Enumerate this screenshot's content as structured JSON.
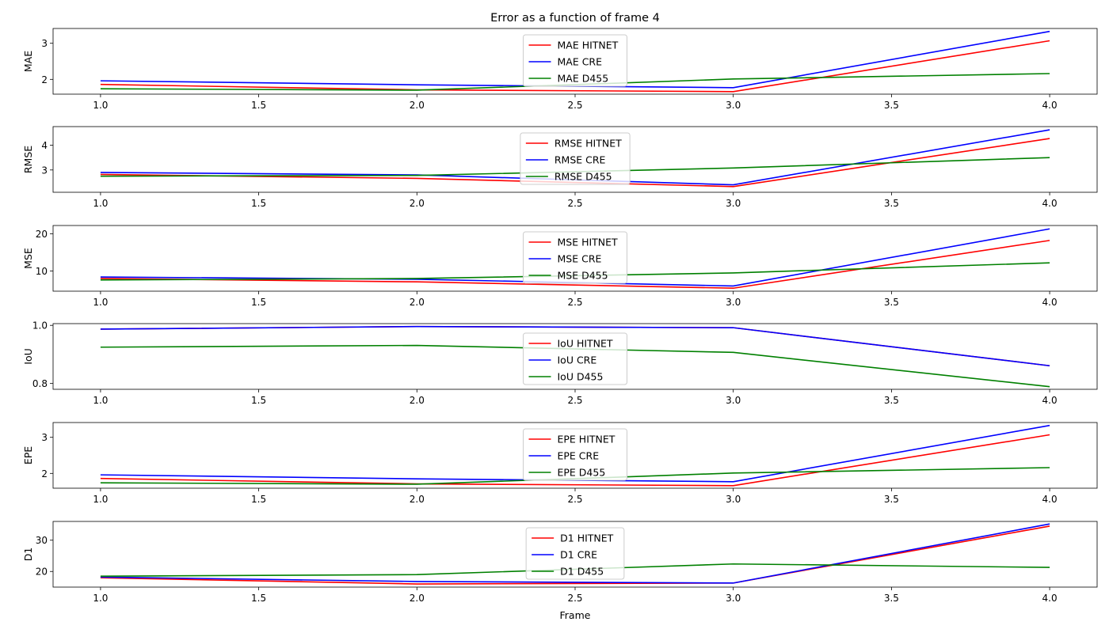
{
  "figure": {
    "title": "Error as a function of frame 4",
    "xlabel": "Frame"
  },
  "chart_data": [
    {
      "type": "line",
      "ylabel": "MAE",
      "x": [
        1.0,
        2.0,
        3.0,
        4.0
      ],
      "xlim": [
        0.85,
        4.15
      ],
      "xticks": [
        1.0,
        1.5,
        2.0,
        2.5,
        3.0,
        3.5,
        4.0
      ],
      "ylim": [
        1.59,
        3.41
      ],
      "yticks": [
        2,
        3
      ],
      "legend_position": "top-center",
      "series": [
        {
          "name": "MAE HITNET",
          "color": "#ff0000",
          "values": [
            1.86,
            1.71,
            1.66,
            3.07
          ]
        },
        {
          "name": "MAE CRE",
          "color": "#0000ff",
          "values": [
            1.96,
            1.85,
            1.77,
            3.33
          ]
        },
        {
          "name": "MAE D455",
          "color": "#008000",
          "values": [
            1.74,
            1.7,
            2.01,
            2.16
          ]
        }
      ]
    },
    {
      "type": "line",
      "ylabel": "RMSE",
      "x": [
        1.0,
        2.0,
        3.0,
        4.0
      ],
      "xlim": [
        0.85,
        4.15
      ],
      "xticks": [
        1.0,
        1.5,
        2.0,
        2.5,
        3.0,
        3.5,
        4.0
      ],
      "ylim": [
        2.1,
        4.75
      ],
      "yticks": [
        3,
        4
      ],
      "legend_position": "top-center",
      "series": [
        {
          "name": "RMSE HITNET",
          "color": "#ff0000",
          "values": [
            2.82,
            2.66,
            2.33,
            4.27
          ]
        },
        {
          "name": "RMSE CRE",
          "color": "#0000ff",
          "values": [
            2.9,
            2.8,
            2.4,
            4.62
          ]
        },
        {
          "name": "RMSE D455",
          "color": "#008000",
          "values": [
            2.75,
            2.78,
            3.08,
            3.5
          ]
        }
      ]
    },
    {
      "type": "line",
      "ylabel": "MSE",
      "x": [
        1.0,
        2.0,
        3.0,
        4.0
      ],
      "xlim": [
        0.85,
        4.15
      ],
      "xticks": [
        1.0,
        1.5,
        2.0,
        2.5,
        3.0,
        3.5,
        4.0
      ],
      "ylim": [
        4.6,
        22.2
      ],
      "yticks": [
        10,
        20
      ],
      "legend_position": "top-center",
      "series": [
        {
          "name": "MSE HITNET",
          "color": "#ff0000",
          "values": [
            8.0,
            7.1,
            5.4,
            18.2
          ]
        },
        {
          "name": "MSE CRE",
          "color": "#0000ff",
          "values": [
            8.4,
            7.8,
            6.0,
            21.3
          ]
        },
        {
          "name": "MSE D455",
          "color": "#008000",
          "values": [
            7.6,
            8.0,
            9.5,
            12.2
          ]
        }
      ]
    },
    {
      "type": "line",
      "ylabel": "IoU",
      "x": [
        1.0,
        2.0,
        3.0,
        4.0
      ],
      "xlim": [
        0.85,
        4.15
      ],
      "xticks": [
        1.0,
        1.5,
        2.0,
        2.5,
        3.0,
        3.5,
        4.0
      ],
      "ylim": [
        0.78,
        1.006
      ],
      "yticks": [
        0.8,
        1.0
      ],
      "ytick_labels": [
        "0.8",
        "1.0"
      ],
      "legend_position": "bottom-center",
      "series": [
        {
          "name": "IoU HITNET",
          "color": "#ff0000",
          "values": [
            0.987,
            0.996,
            0.992,
            0.861
          ]
        },
        {
          "name": "IoU CRE",
          "color": "#0000ff",
          "values": [
            0.987,
            0.996,
            0.992,
            0.861
          ]
        },
        {
          "name": "IoU D455",
          "color": "#008000",
          "values": [
            0.925,
            0.931,
            0.907,
            0.789
          ]
        }
      ]
    },
    {
      "type": "line",
      "ylabel": "EPE",
      "x": [
        1.0,
        2.0,
        3.0,
        4.0
      ],
      "xlim": [
        0.85,
        4.15
      ],
      "xticks": [
        1.0,
        1.5,
        2.0,
        2.5,
        3.0,
        3.5,
        4.0
      ],
      "ylim": [
        1.59,
        3.41
      ],
      "yticks": [
        2,
        3
      ],
      "legend_position": "top-center",
      "series": [
        {
          "name": "EPE HITNET",
          "color": "#ff0000",
          "values": [
            1.86,
            1.71,
            1.66,
            3.07
          ]
        },
        {
          "name": "EPE CRE",
          "color": "#0000ff",
          "values": [
            1.96,
            1.85,
            1.77,
            3.33
          ]
        },
        {
          "name": "EPE D455",
          "color": "#008000",
          "values": [
            1.74,
            1.7,
            2.01,
            2.16
          ]
        }
      ]
    },
    {
      "type": "line",
      "ylabel": "D1",
      "x": [
        1.0,
        2.0,
        3.0,
        4.0
      ],
      "xlim": [
        0.85,
        4.15
      ],
      "xticks": [
        1.0,
        1.5,
        2.0,
        2.5,
        3.0,
        3.5,
        4.0
      ],
      "ylim": [
        15.0,
        36.0
      ],
      "yticks": [
        20,
        30
      ],
      "legend_position": "top-center",
      "series": [
        {
          "name": "D1 HITNET",
          "color": "#ff0000",
          "values": [
            18.0,
            16.0,
            16.3,
            34.5
          ]
        },
        {
          "name": "D1 CRE",
          "color": "#0000ff",
          "values": [
            18.2,
            16.8,
            16.3,
            35.2
          ]
        },
        {
          "name": "D1 D455",
          "color": "#008000",
          "values": [
            18.5,
            19.0,
            22.4,
            21.3
          ]
        }
      ]
    }
  ]
}
